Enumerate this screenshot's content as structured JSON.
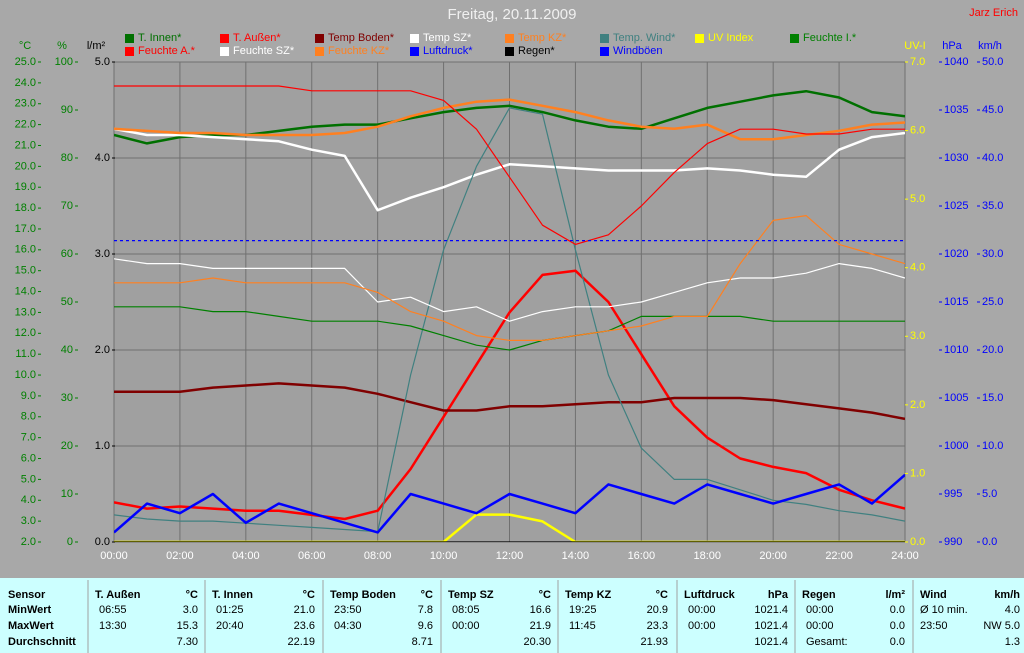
{
  "chart_data": {
    "type": "line",
    "title": "Freitag, 20.11.2009",
    "author": "Jarz Erich",
    "xlim": [
      0,
      24
    ],
    "xticks": [
      {
        "value": 0,
        "label": "00:00"
      },
      {
        "value": 2,
        "label": "02:00"
      },
      {
        "value": 4,
        "label": "04:00"
      },
      {
        "value": 6,
        "label": "06:00"
      },
      {
        "value": 8,
        "label": "08:00"
      },
      {
        "value": 10,
        "label": "10:00"
      },
      {
        "value": 12,
        "label": "12:00"
      },
      {
        "value": 14,
        "label": "14:00"
      },
      {
        "value": 16,
        "label": "16:00"
      },
      {
        "value": 18,
        "label": "18:00"
      },
      {
        "value": 20,
        "label": "20:00"
      },
      {
        "value": 22,
        "label": "22:00"
      },
      {
        "value": 24,
        "label": "24:00"
      }
    ],
    "x": [
      0,
      1,
      2,
      3,
      4,
      5,
      6,
      7,
      8,
      9,
      10,
      11,
      12,
      13,
      14,
      15,
      16,
      17,
      18,
      19,
      20,
      21,
      22,
      23,
      24
    ],
    "grid": true,
    "axes": {
      "y": {
        "label": "°C",
        "color": "#008000",
        "ylim": [
          2,
          25
        ],
        "yticks": [
          {
            "value": 2,
            "label": "2.0"
          },
          {
            "value": 3,
            "label": "3.0"
          },
          {
            "value": 4,
            "label": "4.0"
          },
          {
            "value": 5,
            "label": "5.0"
          },
          {
            "value": 6,
            "label": "6.0"
          },
          {
            "value": 7,
            "label": "7.0"
          },
          {
            "value": 8,
            "label": "8.0"
          },
          {
            "value": 9,
            "label": "9.0"
          },
          {
            "value": 10,
            "label": "10.0"
          },
          {
            "value": 11,
            "label": "11.0"
          },
          {
            "value": 12,
            "label": "12.0"
          },
          {
            "value": 13,
            "label": "13.0"
          },
          {
            "value": 14,
            "label": "14.0"
          },
          {
            "value": 15,
            "label": "15.0"
          },
          {
            "value": 16,
            "label": "16.0"
          },
          {
            "value": 17,
            "label": "17.0"
          },
          {
            "value": 18,
            "label": "18.0"
          },
          {
            "value": 19,
            "label": "19.0"
          },
          {
            "value": 20,
            "label": "20.0"
          },
          {
            "value": 21,
            "label": "21.0"
          },
          {
            "value": 22,
            "label": "22.0"
          },
          {
            "value": 23,
            "label": "23.0"
          },
          {
            "value": 24,
            "label": "24.0"
          },
          {
            "value": 25,
            "label": "25.0"
          }
        ]
      },
      "y2": {
        "label": "%",
        "color": "#008000",
        "ylim": [
          0,
          100
        ],
        "yticks": [
          0,
          10,
          20,
          30,
          40,
          50,
          60,
          70,
          80,
          90,
          100
        ]
      },
      "y3": {
        "label": "l/m²",
        "color": "#000000",
        "ylim": [
          0,
          5
        ],
        "yticks": [
          {
            "value": 0,
            "label": "0.0"
          },
          {
            "value": 1,
            "label": "1.0"
          },
          {
            "value": 2,
            "label": "2.0"
          },
          {
            "value": 3,
            "label": "3.0"
          },
          {
            "value": 4,
            "label": "4.0"
          },
          {
            "value": 5,
            "label": "5.0"
          }
        ]
      },
      "y4": {
        "label": "UV-I",
        "color": "#ffff00",
        "ylim": [
          0,
          7
        ],
        "yticks": [
          {
            "value": 0,
            "label": "0.0"
          },
          {
            "value": 1,
            "label": "1.0"
          },
          {
            "value": 2,
            "label": "2.0"
          },
          {
            "value": 3,
            "label": "3.0"
          },
          {
            "value": 4,
            "label": "4.0"
          },
          {
            "value": 5,
            "label": "5.0"
          },
          {
            "value": 6,
            "label": "6.0"
          },
          {
            "value": 7,
            "label": "7.0"
          }
        ]
      },
      "y5": {
        "label": "hPa",
        "color": "#0000ff",
        "ylim": [
          990,
          1040
        ],
        "yticks": [
          990,
          995,
          1000,
          1005,
          1010,
          1015,
          1020,
          1025,
          1030,
          1035,
          1040
        ]
      },
      "y6": {
        "label": "km/h",
        "color": "#0000ff",
        "ylim": [
          0,
          50
        ],
        "yticks": [
          {
            "value": 0,
            "label": "0.0"
          },
          {
            "value": 5,
            "label": "5.0"
          },
          {
            "value": 10,
            "label": "10.0"
          },
          {
            "value": 15,
            "label": "15.0"
          },
          {
            "value": 20,
            "label": "20.0"
          },
          {
            "value": 25,
            "label": "25.0"
          },
          {
            "value": 30,
            "label": "30.0"
          },
          {
            "value": 35,
            "label": "35.0"
          },
          {
            "value": 40,
            "label": "40.0"
          },
          {
            "value": 45,
            "label": "45.0"
          },
          {
            "value": 50,
            "label": "50.0"
          }
        ]
      }
    },
    "grid_axis": "y3",
    "series": [
      {
        "name": "T. Innen*",
        "color": "#007000",
        "axis": "y",
        "bold": true,
        "values": [
          21.5,
          21.1,
          21.4,
          21.5,
          21.5,
          21.7,
          21.9,
          22.0,
          22.0,
          22.3,
          22.6,
          22.8,
          22.9,
          22.6,
          22.2,
          21.9,
          21.8,
          22.3,
          22.8,
          23.1,
          23.4,
          23.6,
          23.3,
          22.6,
          22.4
        ]
      },
      {
        "name": "T. Außen*",
        "color": "#ff0000",
        "axis": "y",
        "bold": true,
        "values": [
          3.9,
          3.6,
          3.7,
          3.6,
          3.5,
          3.5,
          3.3,
          3.1,
          3.5,
          5.5,
          8.0,
          10.5,
          13.0,
          14.8,
          15.0,
          13.5,
          11.0,
          8.5,
          7.0,
          6.0,
          5.6,
          5.3,
          4.5,
          4.0,
          3.6
        ]
      },
      {
        "name": "Temp Boden*",
        "color": "#800000",
        "axis": "y",
        "bold": true,
        "values": [
          9.2,
          9.2,
          9.2,
          9.4,
          9.5,
          9.6,
          9.5,
          9.4,
          9.1,
          8.7,
          8.3,
          8.3,
          8.5,
          8.5,
          8.6,
          8.7,
          8.7,
          8.9,
          8.9,
          8.9,
          8.8,
          8.6,
          8.4,
          8.2,
          7.9
        ]
      },
      {
        "name": "Temp SZ*",
        "color": "#ffffff",
        "axis": "y",
        "bold": true,
        "values": [
          21.8,
          21.5,
          21.5,
          21.4,
          21.3,
          21.2,
          20.8,
          20.5,
          17.9,
          18.5,
          19.0,
          19.6,
          20.1,
          20.0,
          19.9,
          19.8,
          19.8,
          19.8,
          19.9,
          19.8,
          19.6,
          19.5,
          20.8,
          21.4,
          21.6
        ]
      },
      {
        "name": "Temp KZ*",
        "color": "#ff8020",
        "axis": "y",
        "bold": true,
        "values": [
          21.8,
          21.7,
          21.6,
          21.6,
          21.5,
          21.5,
          21.5,
          21.6,
          21.9,
          22.4,
          22.8,
          23.1,
          23.2,
          22.9,
          22.6,
          22.2,
          21.9,
          21.8,
          22.0,
          21.3,
          21.3,
          21.5,
          21.7,
          22.0,
          22.1
        ]
      },
      {
        "name": "Temp. Wind*",
        "color": "#408080",
        "axis": "y",
        "bold": false,
        "values": [
          3.3,
          3.1,
          3.0,
          3.0,
          2.9,
          2.8,
          2.7,
          2.6,
          2.5,
          10.0,
          16.0,
          20.0,
          22.8,
          22.5,
          16.0,
          10.0,
          6.5,
          5.0,
          5.0,
          4.5,
          4.0,
          3.8,
          3.5,
          3.3,
          3.0
        ]
      },
      {
        "name": "UV Index",
        "color": "#ffff00",
        "axis": "y4",
        "bold": true,
        "values": [
          0,
          0,
          0,
          0,
          0,
          0,
          0,
          0,
          0,
          0,
          0,
          0.4,
          0.4,
          0.3,
          0,
          0,
          0,
          0,
          0,
          0,
          0,
          0,
          0,
          0,
          0
        ]
      },
      {
        "name": "Feuchte I.*",
        "color": "#008000",
        "axis": "y2",
        "bold": false,
        "values": [
          49,
          49,
          49,
          48,
          48,
          47,
          46,
          46,
          46,
          45,
          43,
          41,
          40,
          42,
          43,
          44,
          47,
          47,
          47,
          47,
          46,
          46,
          46,
          46,
          46
        ]
      },
      {
        "name": "Feuchte A.*",
        "color": "#ff0000",
        "axis": "y2",
        "bold": false,
        "values": [
          95,
          95,
          95,
          95,
          95,
          95,
          94,
          94,
          94,
          94,
          92,
          86,
          76,
          66,
          62,
          64,
          70,
          77,
          83,
          86,
          86,
          85,
          85,
          86,
          86
        ]
      },
      {
        "name": "Feuchte SZ*",
        "color": "#ffffff",
        "axis": "y2",
        "bold": false,
        "values": [
          59,
          58,
          58,
          57,
          57,
          57,
          57,
          57,
          50,
          51,
          48,
          49,
          46,
          48,
          49,
          49,
          50,
          52,
          54,
          55,
          55,
          56,
          58,
          57,
          55
        ]
      },
      {
        "name": "Feuchte KZ*",
        "color": "#ff8020",
        "axis": "y2",
        "bold": false,
        "values": [
          54,
          54,
          54,
          55,
          54,
          54,
          54,
          54,
          52,
          48,
          46,
          43,
          42,
          42,
          43,
          44,
          45,
          47,
          47,
          58,
          67,
          68,
          62,
          60,
          58
        ]
      },
      {
        "name": "Luftdruck*",
        "color": "#0000ff",
        "axis": "y5",
        "bold": false,
        "dash": true,
        "values": [
          1021.4,
          1021.4,
          1021.4,
          1021.4,
          1021.4,
          1021.4,
          1021.4,
          1021.4,
          1021.4,
          1021.4,
          1021.4,
          1021.4,
          1021.4,
          1021.4,
          1021.4,
          1021.4,
          1021.4,
          1021.4,
          1021.4,
          1021.4,
          1021.4,
          1021.4,
          1021.4,
          1021.4,
          1021.4
        ]
      },
      {
        "name": "Regen*",
        "color": "#000000",
        "axis": "y3",
        "bold": false,
        "values": [
          0,
          0,
          0,
          0,
          0,
          0,
          0,
          0,
          0,
          0,
          0,
          0,
          0,
          0,
          0,
          0,
          0,
          0,
          0,
          0,
          0,
          0,
          0,
          0,
          0
        ]
      },
      {
        "name": "Windböen",
        "color": "#0000ff",
        "axis": "y6",
        "bold": true,
        "values": [
          1,
          4,
          3,
          5,
          2,
          4,
          3,
          2,
          1,
          5,
          4,
          3,
          5,
          4,
          3,
          6,
          5,
          4,
          6,
          5,
          4,
          5,
          6,
          4,
          7
        ]
      }
    ]
  },
  "table": {
    "headers": [
      "Sensor",
      "T. Außen",
      "T. Innen",
      "Temp Boden",
      "Temp SZ",
      "Temp KZ",
      "Luftdruck",
      "Regen",
      "Wind"
    ],
    "units": [
      "°C",
      "°C",
      "°C",
      "°C",
      "°C",
      "hPa",
      "l/m²",
      "km/h"
    ],
    "rows": [
      {
        "label": "MinWert",
        "cells": [
          [
            "06:55",
            "3.0"
          ],
          [
            "01:25",
            "21.0"
          ],
          [
            "23:50",
            "7.8"
          ],
          [
            "08:05",
            "16.6"
          ],
          [
            "19:25",
            "20.9"
          ],
          [
            "00:00",
            "1021.4"
          ],
          [
            "00:00",
            "0.0"
          ],
          [
            "Ø 10 min.",
            "4.0"
          ]
        ]
      },
      {
        "label": "MaxWert",
        "cells": [
          [
            "13:30",
            "15.3"
          ],
          [
            "20:40",
            "23.6"
          ],
          [
            "04:30",
            "9.6"
          ],
          [
            "00:00",
            "21.9"
          ],
          [
            "11:45",
            "23.3"
          ],
          [
            "00:00",
            "1021.4"
          ],
          [
            "00:00",
            "0.0"
          ],
          [
            "23:50",
            "NW 5.0"
          ]
        ]
      },
      {
        "label": "Durchschnitt",
        "cells": [
          [
            null,
            "7.30"
          ],
          [
            null,
            "22.19"
          ],
          [
            null,
            "8.71"
          ],
          [
            null,
            "20.30"
          ],
          [
            null,
            "21.93"
          ],
          [
            null,
            "1021.4"
          ],
          [
            "Gesamt:",
            "0.0"
          ],
          [
            null,
            "1.3"
          ]
        ]
      }
    ]
  }
}
